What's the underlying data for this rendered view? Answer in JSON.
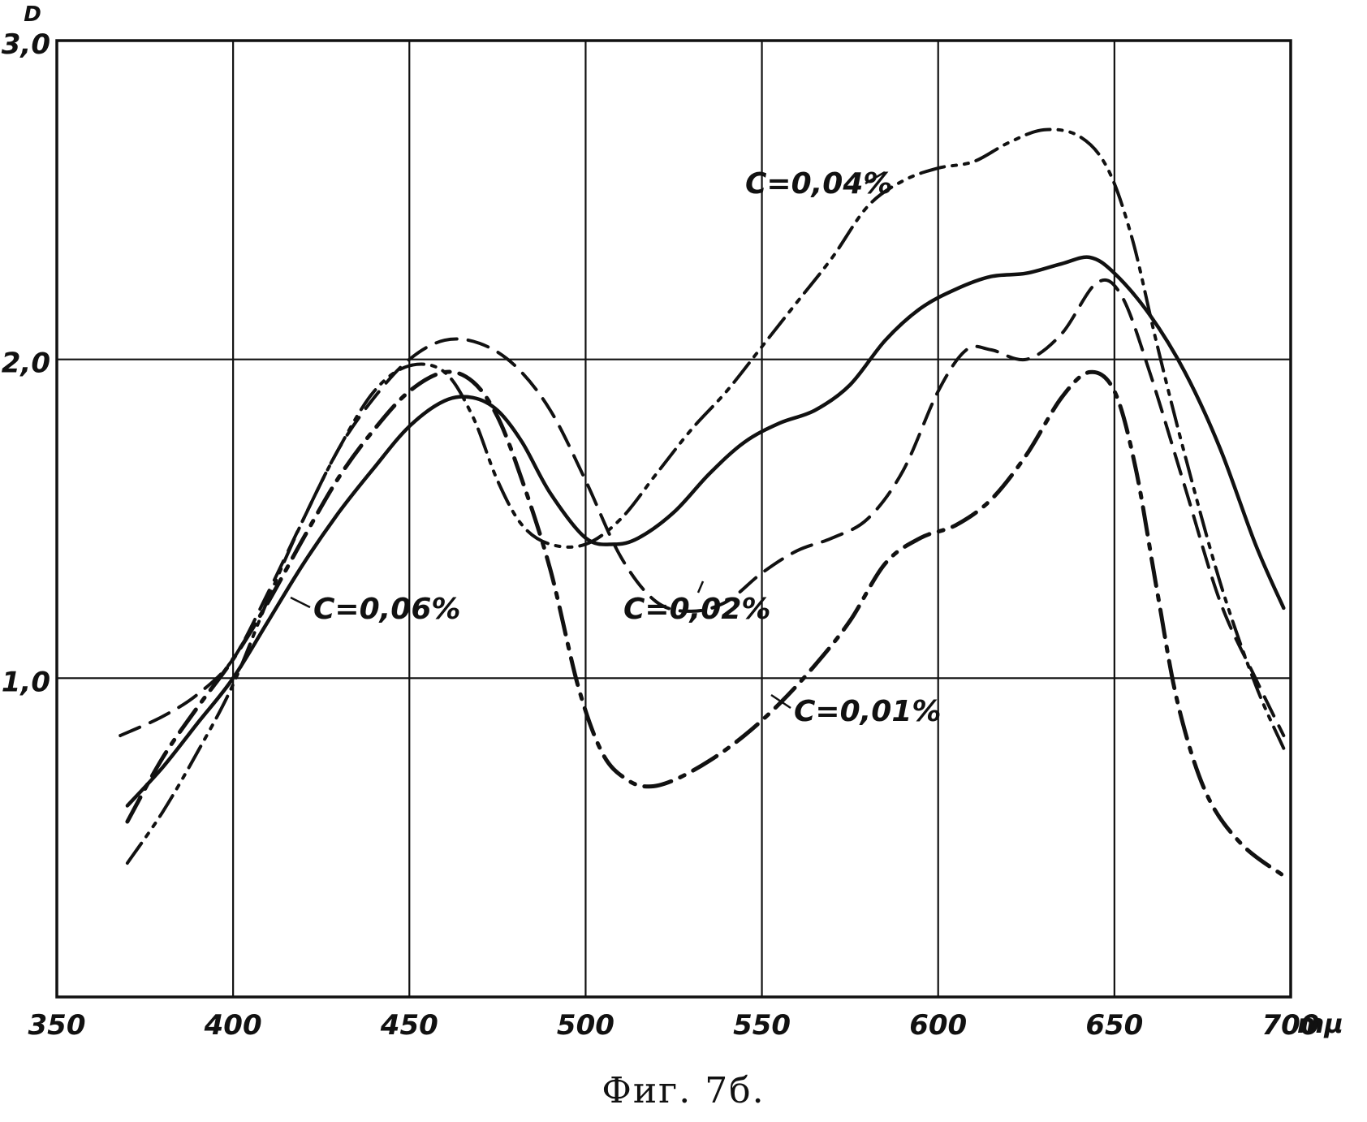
{
  "chart_data": {
    "type": "line",
    "title": "",
    "caption": "Фиг. 7б.",
    "ylabel": "D",
    "xlabel": "mμ",
    "xlim": [
      350,
      700
    ],
    "ylim": [
      0,
      3.0
    ],
    "grid": true,
    "x_ticks": [
      350,
      400,
      450,
      500,
      550,
      600,
      650,
      700
    ],
    "x_tick_labels": [
      "350",
      "400",
      "450",
      "500",
      "550",
      "600",
      "650",
      "700"
    ],
    "y_ticks": [
      1.0,
      2.0,
      3.0
    ],
    "y_tick_labels": [
      "1,0",
      "2,0",
      "3,0"
    ],
    "series": [
      {
        "name": "C=0,04%",
        "style": "dash-dot-dot",
        "points": [
          [
            370,
            0.42
          ],
          [
            380,
            0.58
          ],
          [
            390,
            0.77
          ],
          [
            400,
            0.98
          ],
          [
            410,
            1.25
          ],
          [
            420,
            1.5
          ],
          [
            430,
            1.72
          ],
          [
            440,
            1.9
          ],
          [
            450,
            1.98
          ],
          [
            460,
            1.96
          ],
          [
            468,
            1.82
          ],
          [
            475,
            1.62
          ],
          [
            482,
            1.48
          ],
          [
            490,
            1.42
          ],
          [
            500,
            1.42
          ],
          [
            510,
            1.5
          ],
          [
            520,
            1.64
          ],
          [
            530,
            1.78
          ],
          [
            540,
            1.9
          ],
          [
            550,
            2.04
          ],
          [
            560,
            2.18
          ],
          [
            570,
            2.32
          ],
          [
            580,
            2.48
          ],
          [
            590,
            2.56
          ],
          [
            600,
            2.6
          ],
          [
            610,
            2.62
          ],
          [
            620,
            2.68
          ],
          [
            630,
            2.72
          ],
          [
            640,
            2.7
          ],
          [
            648,
            2.6
          ],
          [
            655,
            2.38
          ],
          [
            662,
            2.05
          ],
          [
            670,
            1.7
          ],
          [
            680,
            1.3
          ],
          [
            690,
            0.98
          ],
          [
            698,
            0.78
          ]
        ]
      },
      {
        "name": "C=0,02%",
        "style": "dashed",
        "points": [
          [
            368,
            0.82
          ],
          [
            380,
            0.88
          ],
          [
            390,
            0.95
          ],
          [
            400,
            1.06
          ],
          [
            410,
            1.27
          ],
          [
            420,
            1.5
          ],
          [
            430,
            1.72
          ],
          [
            440,
            1.88
          ],
          [
            450,
            2.0
          ],
          [
            460,
            2.06
          ],
          [
            470,
            2.05
          ],
          [
            480,
            1.98
          ],
          [
            490,
            1.84
          ],
          [
            500,
            1.62
          ],
          [
            510,
            1.38
          ],
          [
            520,
            1.24
          ],
          [
            530,
            1.21
          ],
          [
            540,
            1.24
          ],
          [
            550,
            1.33
          ],
          [
            560,
            1.4
          ],
          [
            570,
            1.44
          ],
          [
            580,
            1.5
          ],
          [
            590,
            1.65
          ],
          [
            600,
            1.9
          ],
          [
            608,
            2.03
          ],
          [
            615,
            2.03
          ],
          [
            625,
            2.0
          ],
          [
            635,
            2.08
          ],
          [
            645,
            2.24
          ],
          [
            652,
            2.2
          ],
          [
            660,
            1.96
          ],
          [
            670,
            1.6
          ],
          [
            680,
            1.24
          ],
          [
            690,
            1.0
          ],
          [
            698,
            0.82
          ]
        ]
      },
      {
        "name": "C=0,06%",
        "style": "solid",
        "points": [
          [
            370,
            0.6
          ],
          [
            380,
            0.72
          ],
          [
            390,
            0.86
          ],
          [
            400,
            1.0
          ],
          [
            410,
            1.18
          ],
          [
            420,
            1.36
          ],
          [
            430,
            1.52
          ],
          [
            440,
            1.66
          ],
          [
            450,
            1.79
          ],
          [
            460,
            1.87
          ],
          [
            468,
            1.88
          ],
          [
            475,
            1.84
          ],
          [
            482,
            1.74
          ],
          [
            490,
            1.58
          ],
          [
            500,
            1.44
          ],
          [
            508,
            1.42
          ],
          [
            515,
            1.44
          ],
          [
            525,
            1.52
          ],
          [
            535,
            1.64
          ],
          [
            545,
            1.74
          ],
          [
            555,
            1.8
          ],
          [
            565,
            1.84
          ],
          [
            575,
            1.92
          ],
          [
            585,
            2.06
          ],
          [
            595,
            2.16
          ],
          [
            605,
            2.22
          ],
          [
            615,
            2.26
          ],
          [
            625,
            2.27
          ],
          [
            635,
            2.3
          ],
          [
            643,
            2.32
          ],
          [
            650,
            2.27
          ],
          [
            660,
            2.14
          ],
          [
            670,
            1.96
          ],
          [
            680,
            1.72
          ],
          [
            690,
            1.42
          ],
          [
            698,
            1.22
          ]
        ]
      },
      {
        "name": "C=0,01%",
        "style": "dash-dot",
        "points": [
          [
            370,
            0.55
          ],
          [
            380,
            0.75
          ],
          [
            390,
            0.91
          ],
          [
            400,
            1.06
          ],
          [
            410,
            1.24
          ],
          [
            420,
            1.44
          ],
          [
            430,
            1.63
          ],
          [
            440,
            1.78
          ],
          [
            450,
            1.9
          ],
          [
            460,
            1.96
          ],
          [
            468,
            1.93
          ],
          [
            475,
            1.82
          ],
          [
            482,
            1.62
          ],
          [
            490,
            1.34
          ],
          [
            498,
            0.97
          ],
          [
            505,
            0.76
          ],
          [
            512,
            0.68
          ],
          [
            518,
            0.66
          ],
          [
            525,
            0.68
          ],
          [
            535,
            0.74
          ],
          [
            545,
            0.82
          ],
          [
            555,
            0.92
          ],
          [
            565,
            1.04
          ],
          [
            575,
            1.18
          ],
          [
            585,
            1.36
          ],
          [
            595,
            1.44
          ],
          [
            605,
            1.48
          ],
          [
            615,
            1.56
          ],
          [
            625,
            1.7
          ],
          [
            635,
            1.88
          ],
          [
            643,
            1.96
          ],
          [
            650,
            1.9
          ],
          [
            656,
            1.66
          ],
          [
            662,
            1.28
          ],
          [
            668,
            0.92
          ],
          [
            676,
            0.64
          ],
          [
            686,
            0.48
          ],
          [
            698,
            0.38
          ]
        ]
      }
    ]
  }
}
